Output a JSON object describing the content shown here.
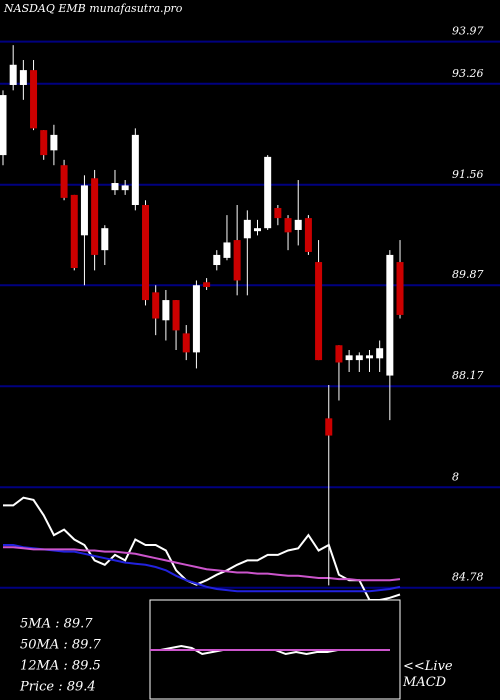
{
  "chart_data": {
    "type": "candlestick",
    "title": "NASDAQ EMB munafasutra.pro",
    "ylim": [
      82.89,
      94.67
    ],
    "yticks": [
      93.97,
      93.26,
      91.56,
      89.87,
      88.17,
      {
        "value": 86.47,
        "label": "8"
      },
      84.78
    ],
    "grid": true,
    "grid_color": "#000080",
    "up_color": "#ffffff",
    "down_color": "#cc0000",
    "open": [
      92.06,
      93.24,
      93.24,
      93.49,
      92.48,
      92.14,
      91.89,
      91.39,
      90.71,
      91.67,
      90.46,
      91.47,
      91.47,
      91.22,
      91.22,
      89.75,
      89.28,
      89.62,
      89.06,
      88.74,
      89.92,
      90.21,
      90.33,
      90.63,
      90.66,
      90.78,
      90.83,
      91.17,
      91.0,
      90.8,
      91.0,
      90.26,
      87.63,
      88.86,
      88.61,
      88.61,
      88.64,
      88.64,
      88.35,
      90.26
    ],
    "high": [
      93.15,
      93.91,
      93.66,
      93.66,
      92.48,
      92.57,
      91.98,
      91.39,
      91.72,
      91.81,
      90.88,
      91.81,
      91.64,
      92.51,
      91.3,
      89.87,
      89.79,
      89.62,
      89.2,
      89.95,
      89.99,
      90.46,
      91.05,
      91.22,
      91.13,
      90.97,
      92.06,
      91.22,
      91.05,
      91.64,
      91.05,
      90.63,
      88.19,
      88.86,
      88.78,
      88.74,
      88.78,
      88.94,
      90.46,
      90.63
    ],
    "low": [
      91.89,
      93.15,
      92.99,
      92.48,
      91.98,
      91.89,
      91.3,
      90.12,
      89.87,
      90.12,
      90.21,
      91.39,
      91.39,
      91.13,
      89.53,
      89.03,
      88.94,
      88.78,
      88.61,
      88.47,
      89.79,
      90.12,
      90.29,
      89.7,
      89.7,
      90.71,
      90.8,
      90.88,
      90.46,
      90.54,
      90.38,
      88.61,
      84.82,
      87.93,
      88.41,
      88.41,
      88.41,
      88.41,
      87.6,
      89.31
    ],
    "close": [
      93.07,
      93.58,
      93.49,
      92.51,
      92.06,
      92.4,
      91.34,
      90.16,
      91.55,
      90.38,
      90.83,
      91.59,
      91.55,
      92.4,
      89.62,
      89.31,
      89.62,
      89.11,
      88.74,
      89.87,
      89.84,
      90.38,
      90.59,
      89.95,
      90.97,
      90.83,
      92.03,
      91.0,
      90.76,
      90.97,
      90.43,
      88.61,
      87.34,
      88.57,
      88.69,
      88.69,
      88.69,
      88.81,
      90.38,
      89.37
    ],
    "y2lim": [
      0,
      100
    ],
    "series": [
      {
        "color": "#ffffff",
        "axis": "y2",
        "values": [
          86,
          86,
          93,
          91,
          77,
          59,
          64,
          55,
          50,
          36,
          32,
          41,
          36,
          55,
          50,
          50,
          45,
          27,
          18,
          14,
          18,
          23,
          27,
          32,
          36,
          36,
          41,
          41,
          45,
          47,
          59,
          45,
          50,
          23,
          18,
          18,
          0,
          0,
          2,
          5
        ]
      },
      {
        "color": "#2222dd",
        "axis": "y2",
        "values": [
          50,
          50,
          48,
          47,
          46,
          45,
          44,
          44,
          42,
          40,
          38,
          36,
          34,
          33,
          32,
          30,
          27,
          22,
          18,
          15,
          12,
          10,
          9,
          8,
          8,
          8,
          8,
          8,
          8,
          8,
          8,
          8,
          8,
          8,
          8,
          8,
          8,
          9,
          10,
          12
        ]
      },
      {
        "color": "#cc55cc",
        "axis": "y2",
        "values": [
          48,
          48,
          47,
          46,
          46,
          46,
          46,
          46,
          45,
          45,
          44,
          44,
          43,
          42,
          40,
          38,
          36,
          34,
          32,
          30,
          28,
          27,
          26,
          25,
          25,
          24,
          24,
          23,
          22,
          22,
          21,
          20,
          20,
          19,
          19,
          18,
          18,
          18,
          18,
          19
        ]
      }
    ],
    "stats": [
      "5MA : 89.7",
      "50MA : 89.7",
      "12MA : 89.5",
      "Price   : 89.4"
    ],
    "macd": {
      "label": "<<Live MACD",
      "ylim": [
        -1,
        1
      ],
      "series": [
        {
          "color": "#ffffff",
          "values": [
            0,
            0,
            0.1,
            0.2,
            0.1,
            -0.2,
            -0.1,
            0,
            0,
            0,
            0,
            0,
            0,
            -0.2,
            -0.1,
            -0.2,
            -0.1,
            -0.1,
            0,
            0,
            0,
            0,
            0,
            0
          ]
        },
        {
          "color": "#cc55cc",
          "values": [
            0,
            0,
            0,
            0,
            0,
            0,
            0,
            0,
            0,
            0,
            0,
            0,
            0,
            0,
            0,
            0,
            0,
            0,
            0,
            0,
            0,
            0,
            0,
            0
          ]
        }
      ]
    }
  }
}
